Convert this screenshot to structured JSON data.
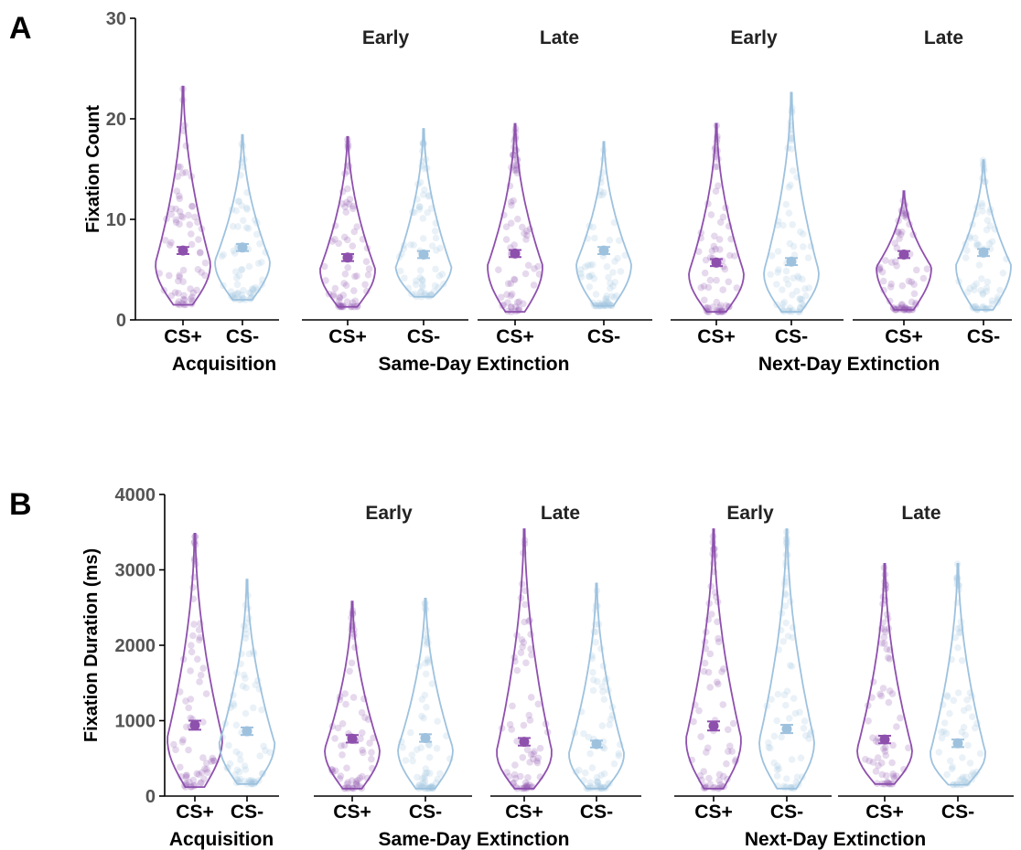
{
  "colors": {
    "cs_plus": "#8e50ad",
    "cs_minus": "#9ec2de"
  },
  "chart_data": [
    {
      "type": "violin",
      "panel_label": "A",
      "ylabel": "Fixation Count",
      "ylim": [
        0,
        30
      ],
      "yticks": [
        0,
        10,
        20,
        30
      ],
      "grid": false,
      "phases": [
        {
          "label": "Acquisition",
          "subphases": [
            {
              "label": "",
              "categories": [
                {
                  "name": "CS+",
                  "mean": 6.9,
                  "sem": 0.35,
                  "min": 1.5,
                  "max": 23.2
                },
                {
                  "name": "CS-",
                  "mean": 7.2,
                  "sem": 0.35,
                  "min": 2.0,
                  "max": 18.4
                }
              ]
            }
          ]
        },
        {
          "label": "Same-Day Extinction",
          "subphases": [
            {
              "label": "Early",
              "categories": [
                {
                  "name": "CS+",
                  "mean": 6.2,
                  "sem": 0.35,
                  "min": 1.3,
                  "max": 18.2
                },
                {
                  "name": "CS-",
                  "mean": 6.5,
                  "sem": 0.35,
                  "min": 2.3,
                  "max": 19.0
                }
              ]
            },
            {
              "label": "Late",
              "categories": [
                {
                  "name": "CS+",
                  "mean": 6.6,
                  "sem": 0.35,
                  "min": 0.8,
                  "max": 19.5
                },
                {
                  "name": "CS-",
                  "mean": 6.9,
                  "sem": 0.35,
                  "min": 1.4,
                  "max": 17.7
                }
              ]
            }
          ]
        },
        {
          "label": "Next-Day Extinction",
          "subphases": [
            {
              "label": "Early",
              "categories": [
                {
                  "name": "CS+",
                  "mean": 5.7,
                  "sem": 0.35,
                  "min": 0.8,
                  "max": 19.5
                },
                {
                  "name": "CS-",
                  "mean": 5.8,
                  "sem": 0.35,
                  "min": 0.8,
                  "max": 22.6
                }
              ]
            },
            {
              "label": "Late",
              "categories": [
                {
                  "name": "CS+",
                  "mean": 6.5,
                  "sem": 0.35,
                  "min": 1.0,
                  "max": 12.8
                },
                {
                  "name": "CS-",
                  "mean": 6.7,
                  "sem": 0.35,
                  "min": 1.0,
                  "max": 15.9
                }
              ]
            }
          ]
        }
      ]
    },
    {
      "type": "violin",
      "panel_label": "B",
      "ylabel": "Fixation Duration (ms)",
      "ylim": [
        0,
        4000
      ],
      "yticks": [
        0,
        1000,
        2000,
        3000,
        4000
      ],
      "grid": false,
      "phases": [
        {
          "label": "Acquisition",
          "subphases": [
            {
              "label": "",
              "categories": [
                {
                  "name": "CS+",
                  "mean": 940,
                  "sem": 60,
                  "min": 120,
                  "max": 3480
                },
                {
                  "name": "CS-",
                  "mean": 860,
                  "sem": 50,
                  "min": 160,
                  "max": 2870
                }
              ]
            }
          ]
        },
        {
          "label": "Same-Day Extinction",
          "subphases": [
            {
              "label": "Early",
              "categories": [
                {
                  "name": "CS+",
                  "mean": 760,
                  "sem": 50,
                  "min": 100,
                  "max": 2580
                },
                {
                  "name": "CS-",
                  "mean": 770,
                  "sem": 50,
                  "min": 100,
                  "max": 2620
                }
              ]
            },
            {
              "label": "Late",
              "categories": [
                {
                  "name": "CS+",
                  "mean": 720,
                  "sem": 50,
                  "min": 100,
                  "max": 3540
                },
                {
                  "name": "CS-",
                  "mean": 690,
                  "sem": 45,
                  "min": 100,
                  "max": 2820
                }
              ]
            }
          ]
        },
        {
          "label": "Next-Day Extinction",
          "subphases": [
            {
              "label": "Early",
              "categories": [
                {
                  "name": "CS+",
                  "mean": 930,
                  "sem": 60,
                  "min": 100,
                  "max": 3540
                },
                {
                  "name": "CS-",
                  "mean": 890,
                  "sem": 55,
                  "min": 100,
                  "max": 3540
                }
              ]
            },
            {
              "label": "Late",
              "categories": [
                {
                  "name": "CS+",
                  "mean": 750,
                  "sem": 50,
                  "min": 160,
                  "max": 3080
                },
                {
                  "name": "CS-",
                  "mean": 700,
                  "sem": 50,
                  "min": 150,
                  "max": 3080
                }
              ]
            }
          ]
        }
      ]
    }
  ]
}
